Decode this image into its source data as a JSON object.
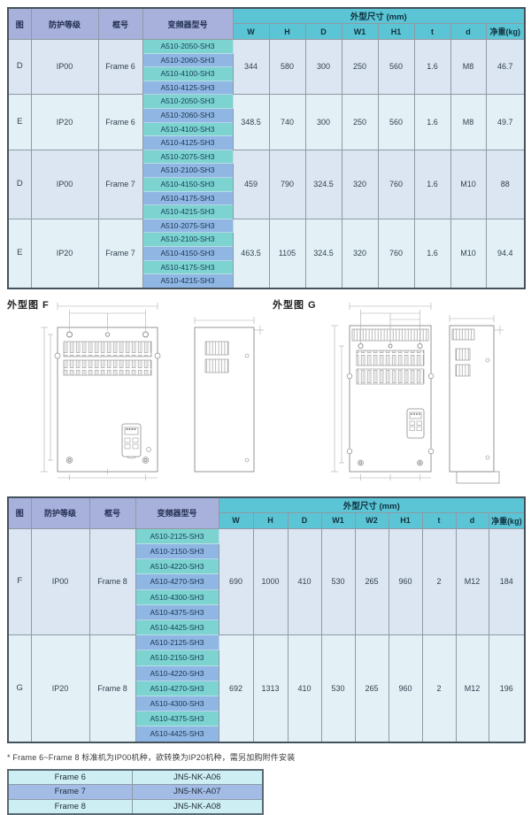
{
  "table1": {
    "headers": {
      "left": [
        "图",
        "防护等级",
        "框号",
        "变频器型号"
      ],
      "dims_title": "外型尺寸 (mm)",
      "cols": [
        "W",
        "H",
        "D",
        "W1",
        "H1",
        "t",
        "d",
        "净重(kg)"
      ]
    },
    "groups": [
      {
        "fig": "D",
        "protection": "IP00",
        "frame": "Frame 6",
        "models": [
          "A510-2050-SH3",
          "A510-2060-SH3",
          "A510-4100-SH3",
          "A510-4125-SH3"
        ],
        "values": [
          "344",
          "580",
          "300",
          "250",
          "560",
          "1.6",
          "M8",
          "46.7"
        ]
      },
      {
        "fig": "E",
        "protection": "IP20",
        "frame": "Frame 6",
        "models": [
          "A510-2050-SH3",
          "A510-2060-SH3",
          "A510-4100-SH3",
          "A510-4125-SH3"
        ],
        "values": [
          "348.5",
          "740",
          "300",
          "250",
          "560",
          "1.6",
          "M8",
          "49.7"
        ]
      },
      {
        "fig": "D",
        "protection": "IP00",
        "frame": "Frame 7",
        "models": [
          "A510-2075-SH3",
          "A510-2100-SH3",
          "A510-4150-SH3",
          "A510-4175-SH3",
          "A510-4215-SH3"
        ],
        "values": [
          "459",
          "790",
          "324.5",
          "320",
          "760",
          "1.6",
          "M10",
          "88"
        ]
      },
      {
        "fig": "E",
        "protection": "IP20",
        "frame": "Frame 7",
        "models": [
          "A510-2075-SH3",
          "A510-2100-SH3",
          "A510-4150-SH3",
          "A510-4175-SH3",
          "A510-4215-SH3"
        ],
        "values": [
          "463.5",
          "1105",
          "324.5",
          "320",
          "760",
          "1.6",
          "M10",
          "94.4"
        ]
      }
    ]
  },
  "diagrams": {
    "f_label": "外型图 F",
    "g_label": "外型图 G"
  },
  "table2": {
    "headers": {
      "left": [
        "图",
        "防护等级",
        "框号",
        "变频器型号"
      ],
      "dims_title": "外型尺寸 (mm)",
      "cols": [
        "W",
        "H",
        "D",
        "W1",
        "W2",
        "H1",
        "t",
        "d",
        "净重(kg)"
      ]
    },
    "groups": [
      {
        "fig": "F",
        "protection": "IP00",
        "frame": "Frame 8",
        "models": [
          "A510-2125-SH3",
          "A510-2150-SH3",
          "A510-4220-SH3",
          "A510-4270-SH3",
          "A510-4300-SH3",
          "A510-4375-SH3",
          "A510-4425-SH3"
        ],
        "values": [
          "690",
          "1000",
          "410",
          "530",
          "265",
          "960",
          "2",
          "M12",
          "184"
        ]
      },
      {
        "fig": "G",
        "protection": "IP20",
        "frame": "Frame 8",
        "models": [
          "A510-2125-SH3",
          "A510-2150-SH3",
          "A510-4220-SH3",
          "A510-4270-SH3",
          "A510-4300-SH3",
          "A510-4375-SH3",
          "A510-4425-SH3"
        ],
        "values": [
          "692",
          "1313",
          "410",
          "530",
          "265",
          "960",
          "2",
          "M12",
          "196"
        ]
      }
    ]
  },
  "footnote": "* Frame 6~Frame 8 标准机为IP00机种，欲转换为IP20机种，需另加购附件安装",
  "accessory_table": {
    "rows": [
      [
        "Frame 6",
        "JN5-NK-A06"
      ],
      [
        "Frame 7",
        "JN5-NK-A07"
      ],
      [
        "Frame 8",
        "JN5-NK-A08"
      ]
    ]
  },
  "colors": {
    "header_teal": "#5cc5d5",
    "header_lavender": "#a8b1dc",
    "model_teal": "#7cd3d0",
    "model_blue": "#90b7e4",
    "row_block_a": "#dbe6f2",
    "row_block_b": "#e3f1f7",
    "accessory_cyan": "#cdeef3",
    "accessory_blue": "#a3bce6"
  }
}
